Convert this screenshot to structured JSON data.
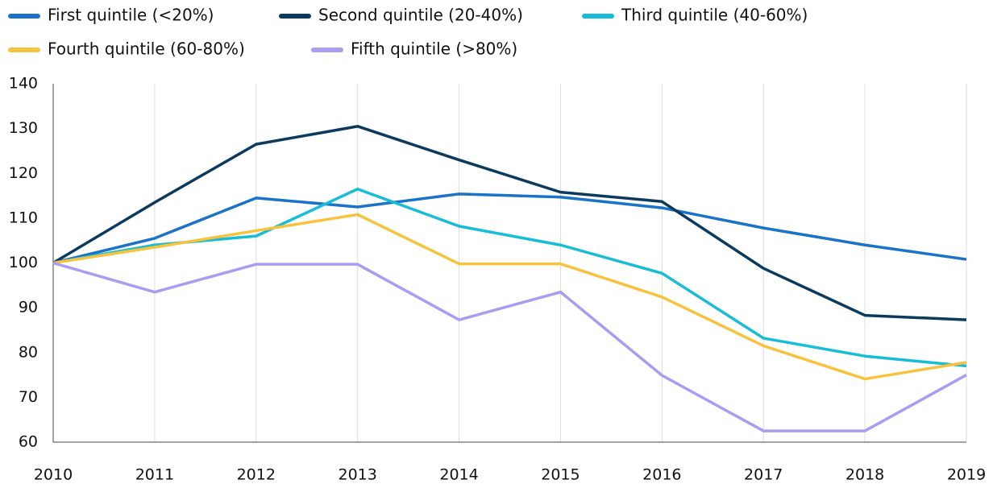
{
  "chart_data": {
    "type": "line",
    "x": [
      2010,
      2011,
      2012,
      2013,
      2014,
      2015,
      2016,
      2017,
      2018,
      2019
    ],
    "xlim": [
      2010,
      2019
    ],
    "xticks": [
      2010,
      2011,
      2012,
      2013,
      2014,
      2015,
      2016,
      2017,
      2018,
      2019
    ],
    "ylim": [
      60,
      140
    ],
    "yticks": [
      60,
      70,
      80,
      90,
      100,
      110,
      120,
      130,
      140
    ],
    "grid": true,
    "series": [
      {
        "name": "First quintile (<20%)",
        "color": "#1a73c9",
        "values": [
          100,
          105.5,
          114.5,
          112.5,
          115.4,
          114.7,
          112.3,
          107.8,
          104,
          100.8
        ]
      },
      {
        "name": "Second quintile (20-40%)",
        "color": "#0b3a5e",
        "values": [
          100,
          113.5,
          126.5,
          130.5,
          123,
          115.8,
          113.7,
          98.8,
          88.3,
          87.3
        ]
      },
      {
        "name": "Third quintile (40-60%)",
        "color": "#17bcd6",
        "values": [
          100,
          104,
          106,
          116.5,
          108.2,
          104,
          97.7,
          83.2,
          79.2,
          77
        ]
      },
      {
        "name": "Fourth quintile (60-80%)",
        "color": "#f7c33c",
        "values": [
          100,
          103.5,
          107.2,
          110.8,
          99.8,
          99.8,
          92.4,
          81.5,
          74.1,
          77.8
        ]
      },
      {
        "name": "Fifth quintile (>80%)",
        "color": "#a99cf2",
        "values": [
          100,
          93.5,
          99.7,
          99.7,
          87.3,
          93.5,
          74.9,
          62.5,
          62.5,
          75
        ]
      }
    ]
  }
}
